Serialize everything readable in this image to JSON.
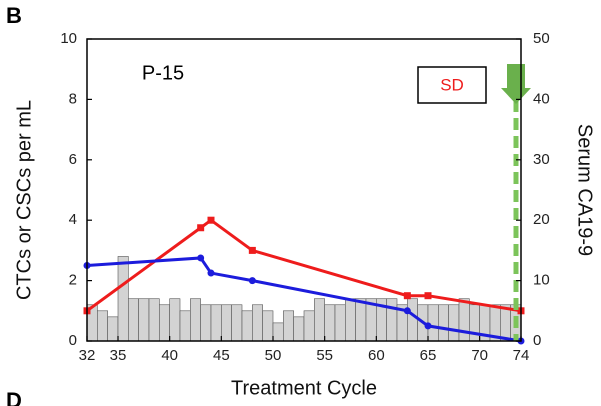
{
  "chart_data": {
    "type": "line",
    "panel_label": "B",
    "next_panel_label": "D",
    "annotation": "P-15",
    "status_label": "SD",
    "xlabel": "Treatment Cycle",
    "ylabel": "CTCs or CSCs per mL",
    "y2label": "Serum CA19-9",
    "xlim": [
      32,
      74
    ],
    "xticks": [
      32,
      35,
      40,
      45,
      50,
      55,
      60,
      65,
      70,
      74
    ],
    "ylim": [
      0,
      10
    ],
    "yticks": [
      0,
      2,
      4,
      6,
      8,
      10
    ],
    "y2lim": [
      0,
      50
    ],
    "y2ticks": [
      0,
      10,
      20,
      30,
      40,
      50
    ],
    "series": [
      {
        "type": "bar",
        "axis": "y2",
        "color": "#d3d3d3",
        "x": [
          32,
          33,
          34,
          35,
          36,
          37,
          38,
          39,
          40,
          41,
          42,
          43,
          44,
          45,
          46,
          47,
          48,
          49,
          50,
          51,
          52,
          53,
          54,
          55,
          56,
          57,
          58,
          59,
          60,
          61,
          62,
          63,
          64,
          65,
          66,
          67,
          68,
          69,
          70,
          71,
          72,
          73
        ],
        "values": [
          6,
          5,
          4,
          14,
          7,
          7,
          7,
          6,
          7,
          5,
          7,
          6,
          6,
          6,
          6,
          5,
          6,
          5,
          3,
          5,
          4,
          5,
          7,
          6,
          6,
          7,
          7,
          7,
          7,
          7,
          6,
          7,
          6,
          6,
          6,
          6,
          7,
          6,
          6,
          6,
          6,
          6
        ]
      },
      {
        "type": "line",
        "color": "#ee1c1c",
        "marker": "square",
        "x": [
          32,
          43,
          44,
          48,
          63,
          65,
          74
        ],
        "values": [
          1.0,
          3.75,
          4.0,
          3.0,
          1.5,
          1.5,
          1.0
        ]
      },
      {
        "type": "line",
        "color": "#1c1cdc",
        "marker": "circle",
        "x": [
          32,
          43,
          44,
          48,
          63,
          65,
          74
        ],
        "values": [
          2.5,
          2.75,
          2.25,
          2.0,
          1.0,
          0.5,
          0.0
        ]
      }
    ]
  }
}
